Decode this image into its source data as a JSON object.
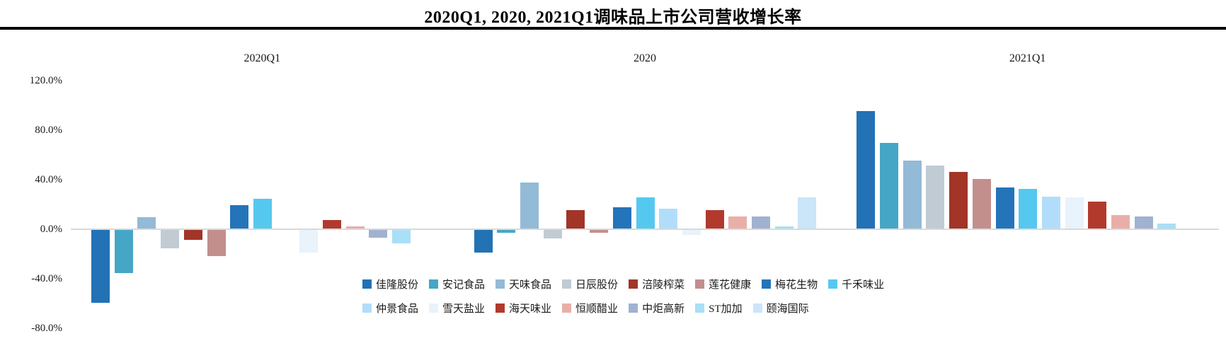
{
  "title": "2020Q1, 2020, 2021Q1调味品上市公司营收增长率",
  "chart_data": {
    "type": "bar",
    "title": "2020Q1, 2020, 2021Q1调味品上市公司营收增长率",
    "groups": [
      "2020Q1",
      "2020",
      "2021Q1"
    ],
    "unit": "%",
    "ylim": [
      -80,
      120
    ],
    "grid": "off",
    "legend_position": "bottom-two-rows",
    "y_ticks": [
      {
        "label": "120.0%",
        "value": 120
      },
      {
        "label": "80.0%",
        "value": 80
      },
      {
        "label": "40.0%",
        "value": 40
      },
      {
        "label": "0.0%",
        "value": 0
      },
      {
        "label": "-40.0%",
        "value": -40
      },
      {
        "label": "-80.0%",
        "value": -80
      }
    ],
    "series": [
      {
        "name": "佳隆股份",
        "color": "#2272B5",
        "values": [
          -59,
          -18,
          95
        ]
      },
      {
        "name": "安记食品",
        "color": "#46A6C6",
        "values": [
          -35,
          -2,
          69
        ]
      },
      {
        "name": "天味食品",
        "color": "#93BAD6",
        "values": [
          9,
          37,
          55
        ]
      },
      {
        "name": "日辰股份",
        "color": "#C1CBD4",
        "values": [
          -15,
          -7,
          51
        ]
      },
      {
        "name": "涪陵榨菜",
        "color": "#A23428",
        "values": [
          -8,
          15,
          46
        ]
      },
      {
        "name": "莲花健康",
        "color": "#C28F8D",
        "values": [
          -21,
          -2,
          40
        ]
      },
      {
        "name": "梅花生物",
        "color": "#2474BA",
        "values": [
          19,
          17,
          33
        ]
      },
      {
        "name": "千禾味业",
        "color": "#55C8F0",
        "values": [
          24,
          25,
          32
        ]
      },
      {
        "name": "仲景食品",
        "color": "#B2DDFA",
        "values": [
          null,
          16,
          26
        ]
      },
      {
        "name": "雪天盐业",
        "color": "#E8F3FB",
        "values": [
          -18,
          -4,
          25
        ]
      },
      {
        "name": "海天味业",
        "color": "#B13A2D",
        "values": [
          7,
          15,
          22
        ]
      },
      {
        "name": "恒顺醋业",
        "color": "#EAAEA8",
        "values": [
          2,
          10,
          11
        ]
      },
      {
        "name": "中炬高新",
        "color": "#A1B1D0",
        "values": [
          -6,
          10,
          10
        ]
      },
      {
        "name": "ST加加",
        "color": "#A9DFF7",
        "values": [
          -11,
          2,
          4
        ]
      },
      {
        "name": "颐海国际",
        "color": "#CBE5F9",
        "values": [
          null,
          25,
          null
        ]
      }
    ],
    "legend_rows": [
      8,
      7
    ]
  }
}
